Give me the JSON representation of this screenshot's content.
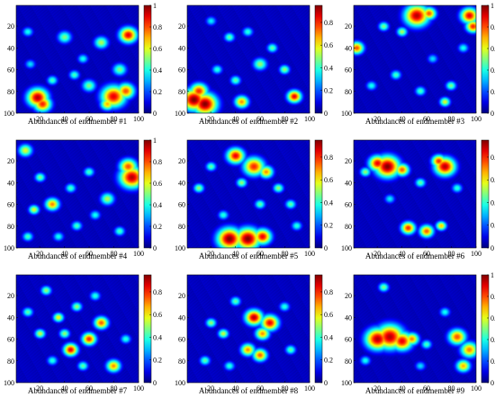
{
  "chart_data": [
    {
      "type": "heatmap",
      "xlabel": "Abundances of endmember #1",
      "x_ticks": [
        "20",
        "40",
        "60",
        "80",
        "100"
      ],
      "y_ticks": [
        "20",
        "40",
        "60",
        "80",
        "100"
      ],
      "colorbar_ticks": [
        "0",
        "0.2",
        "0.4",
        "0.6",
        "0.8",
        "1"
      ],
      "xlim": [
        1,
        100
      ],
      "ylim": [
        1,
        100
      ],
      "clim": [
        0,
        1
      ],
      "colormap": "jet",
      "blobs": [
        [
          18,
          86,
          6,
          0.95
        ],
        [
          22,
          92,
          5,
          0.85
        ],
        [
          80,
          85,
          7,
          0.9
        ],
        [
          90,
          80,
          5,
          0.8
        ],
        [
          75,
          92,
          4,
          0.7
        ],
        [
          92,
          28,
          5,
          0.9
        ],
        [
          60,
          75,
          4,
          0.5
        ],
        [
          48,
          65,
          3,
          0.45
        ],
        [
          10,
          25,
          3,
          0.4
        ],
        [
          40,
          30,
          4,
          0.5
        ],
        [
          70,
          35,
          4,
          0.55
        ],
        [
          55,
          50,
          3,
          0.4
        ],
        [
          30,
          70,
          3,
          0.45
        ],
        [
          85,
          60,
          4,
          0.5
        ],
        [
          12,
          55,
          3,
          0.35
        ]
      ]
    },
    {
      "type": "heatmap",
      "xlabel": "Abundances of endmember #2",
      "x_ticks": [
        "20",
        "40",
        "60",
        "80",
        "100"
      ],
      "y_ticks": [
        "20",
        "40",
        "60",
        "80",
        "100"
      ],
      "colorbar_ticks": [
        "0",
        "0.2",
        "0.4",
        "0.6",
        "0.8"
      ],
      "xlim": [
        1,
        100
      ],
      "ylim": [
        1,
        100
      ],
      "clim": [
        0,
        0.95
      ],
      "colormap": "jet",
      "blobs": [
        [
          6,
          88,
          7,
          0.95
        ],
        [
          15,
          92,
          7,
          0.95
        ],
        [
          10,
          80,
          5,
          0.8
        ],
        [
          88,
          85,
          4,
          0.85
        ],
        [
          45,
          90,
          4,
          0.7
        ],
        [
          60,
          55,
          4,
          0.5
        ],
        [
          35,
          30,
          3,
          0.45
        ],
        [
          50,
          25,
          3,
          0.4
        ],
        [
          70,
          40,
          3,
          0.45
        ],
        [
          25,
          60,
          3,
          0.4
        ],
        [
          80,
          60,
          3,
          0.5
        ],
        [
          40,
          70,
          3,
          0.45
        ],
        [
          20,
          15,
          3,
          0.35
        ]
      ]
    },
    {
      "type": "heatmap",
      "xlabel": "Abundances of endmember #3",
      "x_ticks": [
        "20",
        "40",
        "60",
        "80",
        "100"
      ],
      "y_ticks": [
        "20",
        "40",
        "60",
        "80",
        "100"
      ],
      "colorbar_ticks": [
        "0",
        "0.2",
        "0.4",
        "0.6",
        "0.8",
        "1"
      ],
      "xlim": [
        1,
        100
      ],
      "ylim": [
        1,
        100
      ],
      "clim": [
        0,
        1
      ],
      "colormap": "jet",
      "blobs": [
        [
          52,
          10,
          7,
          0.95
        ],
        [
          62,
          8,
          4,
          0.8
        ],
        [
          95,
          10,
          5,
          0.9
        ],
        [
          98,
          20,
          4,
          0.85
        ],
        [
          3,
          40,
          4,
          0.8
        ],
        [
          40,
          25,
          3,
          0.55
        ],
        [
          25,
          20,
          3,
          0.5
        ],
        [
          75,
          90,
          3,
          0.6
        ],
        [
          80,
          75,
          3,
          0.5
        ],
        [
          55,
          80,
          3,
          0.45
        ],
        [
          35,
          65,
          3,
          0.45
        ],
        [
          90,
          40,
          3,
          0.4
        ],
        [
          15,
          75,
          3,
          0.4
        ],
        [
          65,
          50,
          3,
          0.35
        ]
      ]
    },
    {
      "type": "heatmap",
      "xlabel": "Abundances of endmember #4",
      "x_ticks": [
        "20",
        "40",
        "60",
        "80",
        "100"
      ],
      "y_ticks": [
        "20",
        "40",
        "60",
        "80",
        "100"
      ],
      "colorbar_ticks": [
        "0",
        "0.2",
        "0.4",
        "0.6",
        "0.8",
        "1"
      ],
      "xlim": [
        1,
        100
      ],
      "ylim": [
        1,
        100
      ],
      "clim": [
        0,
        1
      ],
      "colormap": "jet",
      "blobs": [
        [
          95,
          35,
          7,
          0.95
        ],
        [
          92,
          25,
          5,
          0.8
        ],
        [
          30,
          60,
          4,
          0.75
        ],
        [
          15,
          65,
          3,
          0.6
        ],
        [
          8,
          10,
          4,
          0.6
        ],
        [
          20,
          35,
          3,
          0.5
        ],
        [
          45,
          45,
          3,
          0.45
        ],
        [
          60,
          30,
          3,
          0.45
        ],
        [
          75,
          55,
          4,
          0.55
        ],
        [
          50,
          80,
          3,
          0.45
        ],
        [
          85,
          85,
          3,
          0.45
        ],
        [
          10,
          90,
          3,
          0.45
        ],
        [
          35,
          90,
          3,
          0.4
        ],
        [
          65,
          70,
          3,
          0.4
        ]
      ]
    },
    {
      "type": "heatmap",
      "xlabel": "Abundances of endmember #5",
      "x_ticks": [
        "20",
        "40",
        "60",
        "80",
        "100"
      ],
      "y_ticks": [
        "20",
        "40",
        "60",
        "80",
        "100"
      ],
      "colorbar_ticks": [
        "0",
        "0.2",
        "0.4",
        "0.6",
        "0.8"
      ],
      "xlim": [
        1,
        100
      ],
      "ylim": [
        1,
        100
      ],
      "clim": [
        0,
        0.95
      ],
      "colormap": "jet",
      "blobs": [
        [
          35,
          92,
          7,
          0.95
        ],
        [
          50,
          92,
          7,
          0.95
        ],
        [
          62,
          90,
          5,
          0.85
        ],
        [
          40,
          15,
          5,
          0.85
        ],
        [
          55,
          25,
          6,
          0.8
        ],
        [
          65,
          30,
          4,
          0.7
        ],
        [
          45,
          40,
          3,
          0.5
        ],
        [
          10,
          45,
          3,
          0.5
        ],
        [
          20,
          25,
          3,
          0.45
        ],
        [
          75,
          45,
          3,
          0.5
        ],
        [
          85,
          60,
          3,
          0.45
        ],
        [
          60,
          60,
          3,
          0.45
        ],
        [
          30,
          70,
          3,
          0.4
        ],
        [
          90,
          80,
          3,
          0.4
        ]
      ]
    },
    {
      "type": "heatmap",
      "xlabel": "Abundances of endmember #6",
      "x_ticks": [
        "20",
        "40",
        "60",
        "80",
        "100"
      ],
      "y_ticks": [
        "20",
        "40",
        "60",
        "80",
        "100"
      ],
      "colorbar_ticks": [
        "0",
        "0.2",
        "0.4",
        "0.6",
        "0.8"
      ],
      "xlim": [
        1,
        100
      ],
      "ylim": [
        1,
        100
      ],
      "clim": [
        0,
        0.95
      ],
      "colormap": "jet",
      "blobs": [
        [
          28,
          25,
          7,
          0.95
        ],
        [
          20,
          22,
          5,
          0.85
        ],
        [
          40,
          28,
          4,
          0.75
        ],
        [
          75,
          25,
          6,
          0.9
        ],
        [
          70,
          20,
          4,
          0.8
        ],
        [
          45,
          82,
          4,
          0.8
        ],
        [
          60,
          85,
          4,
          0.75
        ],
        [
          72,
          80,
          3,
          0.65
        ],
        [
          10,
          30,
          3,
          0.5
        ],
        [
          55,
          40,
          3,
          0.45
        ],
        [
          85,
          45,
          3,
          0.4
        ],
        [
          30,
          55,
          3,
          0.35
        ]
      ]
    },
    {
      "type": "heatmap",
      "xlabel": "Abundances of endmember #7",
      "x_ticks": [
        "20",
        "40",
        "60",
        "80",
        "100"
      ],
      "y_ticks": [
        "20",
        "40",
        "60",
        "80",
        "100"
      ],
      "colorbar_ticks": [
        "0",
        "0.2",
        "0.4",
        "0.6",
        "0.8"
      ],
      "xlim": [
        1,
        100
      ],
      "ylim": [
        1,
        100
      ],
      "clim": [
        0,
        0.95
      ],
      "colormap": "jet",
      "blobs": [
        [
          45,
          70,
          4,
          0.85
        ],
        [
          60,
          60,
          4,
          0.8
        ],
        [
          70,
          45,
          4,
          0.75
        ],
        [
          35,
          40,
          3,
          0.6
        ],
        [
          20,
          55,
          3,
          0.55
        ],
        [
          80,
          85,
          4,
          0.7
        ],
        [
          25,
          15,
          3,
          0.5
        ],
        [
          50,
          30,
          3,
          0.5
        ],
        [
          10,
          35,
          3,
          0.45
        ],
        [
          90,
          60,
          3,
          0.4
        ],
        [
          55,
          85,
          3,
          0.45
        ],
        [
          30,
          80,
          3,
          0.4
        ],
        [
          65,
          20,
          3,
          0.4
        ],
        [
          40,
          55,
          3,
          0.5
        ]
      ]
    },
    {
      "type": "heatmap",
      "xlabel": "Abundances of endmember #8",
      "x_ticks": [
        "20",
        "40",
        "60",
        "80",
        "100"
      ],
      "y_ticks": [
        "20",
        "40",
        "60",
        "80",
        "100"
      ],
      "colorbar_ticks": [
        "0",
        "0.2",
        "0.4",
        "0.6",
        "0.8"
      ],
      "xlim": [
        1,
        100
      ],
      "ylim": [
        1,
        100
      ],
      "clim": [
        0,
        0.95
      ],
      "colormap": "jet",
      "blobs": [
        [
          55,
          40,
          5,
          0.9
        ],
        [
          68,
          45,
          5,
          0.85
        ],
        [
          62,
          55,
          4,
          0.7
        ],
        [
          50,
          70,
          4,
          0.7
        ],
        [
          60,
          75,
          4,
          0.75
        ],
        [
          30,
          55,
          3,
          0.55
        ],
        [
          20,
          45,
          3,
          0.5
        ],
        [
          40,
          25,
          3,
          0.45
        ],
        [
          80,
          30,
          3,
          0.4
        ],
        [
          15,
          80,
          3,
          0.45
        ],
        [
          85,
          70,
          3,
          0.45
        ],
        [
          35,
          85,
          3,
          0.4
        ]
      ]
    },
    {
      "type": "heatmap",
      "xlabel": "Abundances of endmember #9",
      "x_ticks": [
        "20",
        "40",
        "60",
        "80",
        "100"
      ],
      "y_ticks": [
        "20",
        "40",
        "60",
        "80",
        "100"
      ],
      "colorbar_ticks": [
        "0",
        "0.2",
        "0.4",
        "0.6",
        "0.8",
        "1"
      ],
      "xlim": [
        1,
        100
      ],
      "ylim": [
        1,
        100
      ],
      "clim": [
        0,
        1
      ],
      "colormap": "jet",
      "blobs": [
        [
          20,
          60,
          7,
          0.95
        ],
        [
          30,
          58,
          8,
          0.95
        ],
        [
          40,
          62,
          6,
          0.9
        ],
        [
          48,
          60,
          4,
          0.75
        ],
        [
          85,
          58,
          5,
          0.8
        ],
        [
          95,
          70,
          5,
          0.75
        ],
        [
          90,
          85,
          4,
          0.7
        ],
        [
          25,
          12,
          3,
          0.5
        ],
        [
          60,
          65,
          3,
          0.45
        ],
        [
          75,
          35,
          3,
          0.4
        ],
        [
          10,
          80,
          3,
          0.4
        ],
        [
          55,
          85,
          3,
          0.35
        ]
      ]
    }
  ]
}
